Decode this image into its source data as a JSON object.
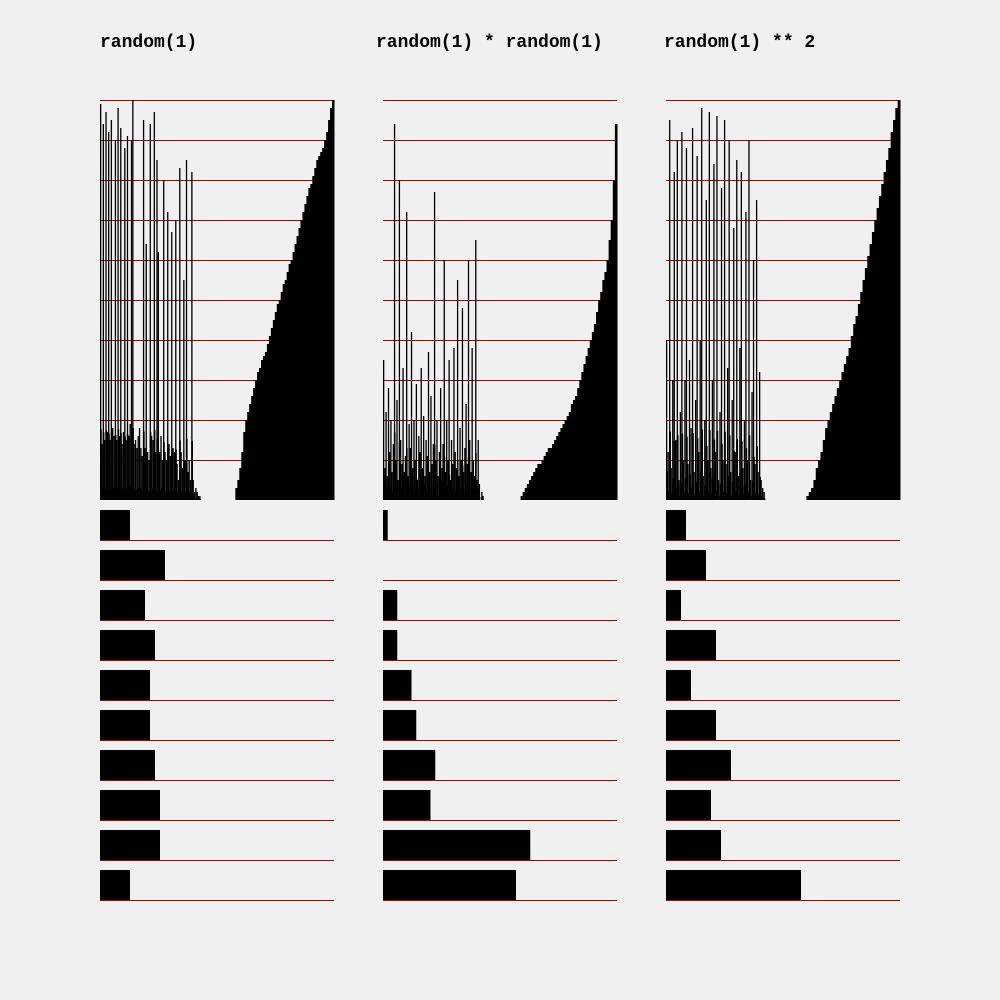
{
  "panels": [
    {
      "title": "random(1)"
    },
    {
      "title": "random(1) * random(1)"
    },
    {
      "title": "random(1) ** 2"
    }
  ],
  "colors": {
    "background": "#f0f0f0",
    "bar": "#000000",
    "gridline": "#b00000"
  },
  "chart_data": [
    {
      "type": "bar",
      "title": "random(1)",
      "description": "Top: samples drawn as vertical bars, sorted samples on right; bottom: histogram of 10 bins over [0,1)",
      "ylim": [
        0,
        1
      ],
      "histogram": {
        "bins": [
          "0.0-0.1",
          "0.1-0.2",
          "0.2-0.3",
          "0.3-0.4",
          "0.4-0.5",
          "0.5-0.6",
          "0.6-0.7",
          "0.7-0.8",
          "0.8-0.9",
          "0.9-1.0"
        ],
        "counts": [
          6,
          13,
          9,
          11,
          10,
          10,
          11,
          12,
          12,
          6
        ]
      },
      "samples": [
        0.99,
        0.14,
        0.94,
        0.15,
        0.97,
        0.17,
        0.92,
        0.15,
        0.95,
        0.18,
        0.16,
        0.9,
        0.15,
        0.98,
        0.16,
        0.93,
        0.14,
        0.17,
        0.88,
        0.15,
        0.91,
        0.16,
        0.19,
        0.9,
        1.0,
        0.14,
        0.15,
        0.13,
        0.16,
        0.18,
        0.13,
        0.11,
        0.95,
        0.13,
        0.64,
        0.12,
        0.1,
        0.94,
        0.16,
        0.15,
        0.97,
        0.12,
        0.85,
        0.62,
        0.12,
        0.16,
        0.1,
        0.8,
        0.12,
        0.1,
        0.72,
        0.14,
        0.11,
        0.67,
        0.13,
        0.12,
        0.7,
        0.09,
        0.05,
        0.83,
        0.12,
        0.08,
        0.55,
        0.1,
        0.85,
        0.07,
        0.1,
        0.05,
        0.82,
        0.05,
        0.02,
        0.03,
        0.02,
        0.01,
        0.01
      ],
      "sorted_samples": [
        0.0,
        0.03,
        0.05,
        0.08,
        0.12,
        0.17,
        0.2,
        0.22,
        0.24,
        0.26,
        0.28,
        0.3,
        0.32,
        0.33,
        0.35,
        0.36,
        0.37,
        0.39,
        0.41,
        0.43,
        0.45,
        0.47,
        0.49,
        0.5,
        0.52,
        0.54,
        0.55,
        0.57,
        0.59,
        0.6,
        0.62,
        0.64,
        0.66,
        0.68,
        0.7,
        0.72,
        0.74,
        0.76,
        0.78,
        0.79,
        0.81,
        0.83,
        0.85,
        0.86,
        0.87,
        0.88,
        0.9,
        0.92,
        0.95,
        0.98,
        1.0
      ]
    },
    {
      "type": "bar",
      "title": "random(1) * random(1)",
      "ylim": [
        0,
        1
      ],
      "histogram": {
        "bins": [
          "0.0-0.1",
          "0.1-0.2",
          "0.2-0.3",
          "0.3-0.4",
          "0.4-0.5",
          "0.5-0.6",
          "0.6-0.7",
          "0.7-0.8",
          "0.8-0.9",
          "0.9-1.0"
        ],
        "counts": [
          1,
          0,
          3,
          3,
          6,
          7,
          11,
          10,
          31,
          28
        ]
      },
      "samples": [
        0.35,
        0.08,
        0.22,
        0.06,
        0.28,
        0.12,
        0.2,
        0.07,
        0.14,
        0.94,
        0.1,
        0.25,
        0.05,
        0.8,
        0.15,
        0.09,
        0.33,
        0.07,
        0.11,
        0.72,
        0.06,
        0.19,
        0.13,
        0.42,
        0.08,
        0.2,
        0.1,
        0.29,
        0.05,
        0.16,
        0.12,
        0.33,
        0.08,
        0.21,
        0.06,
        0.15,
        0.11,
        0.37,
        0.07,
        0.26,
        0.09,
        0.14,
        0.77,
        0.1,
        0.2,
        0.06,
        0.12,
        0.28,
        0.08,
        0.14,
        0.6,
        0.07,
        0.2,
        0.1,
        0.35,
        0.05,
        0.15,
        0.09,
        0.38,
        0.12,
        0.08,
        0.55,
        0.06,
        0.18,
        0.1,
        0.48,
        0.07,
        0.13,
        0.24,
        0.09,
        0.6,
        0.15,
        0.07,
        0.38,
        0.1,
        0.06,
        0.65,
        0.05,
        0.15,
        0.04,
        0.0,
        0.02,
        0.01
      ],
      "sorted_samples": [
        0.0,
        0.0,
        0.01,
        0.02,
        0.03,
        0.04,
        0.05,
        0.06,
        0.07,
        0.08,
        0.09,
        0.09,
        0.1,
        0.11,
        0.12,
        0.13,
        0.13,
        0.14,
        0.15,
        0.16,
        0.17,
        0.18,
        0.19,
        0.2,
        0.21,
        0.22,
        0.24,
        0.25,
        0.26,
        0.28,
        0.3,
        0.32,
        0.34,
        0.36,
        0.38,
        0.4,
        0.42,
        0.44,
        0.47,
        0.5,
        0.52,
        0.55,
        0.57,
        0.6,
        0.65,
        0.7,
        0.8,
        0.94
      ]
    },
    {
      "type": "bar",
      "title": "random(1) ** 2",
      "ylim": [
        0,
        1
      ],
      "histogram": {
        "bins": [
          "0.0-0.1",
          "0.1-0.2",
          "0.2-0.3",
          "0.3-0.4",
          "0.4-0.5",
          "0.5-0.6",
          "0.6-0.7",
          "0.7-0.8",
          "0.8-0.9",
          "0.9-1.0"
        ],
        "counts": [
          4,
          8,
          3,
          10,
          5,
          10,
          13,
          9,
          11,
          27
        ]
      },
      "samples": [
        0.4,
        0.12,
        0.95,
        0.08,
        0.3,
        0.82,
        0.15,
        0.9,
        0.05,
        0.22,
        0.92,
        0.1,
        0.3,
        0.88,
        0.09,
        0.35,
        0.18,
        0.93,
        0.07,
        0.25,
        0.86,
        0.12,
        0.4,
        0.98,
        0.06,
        0.2,
        0.75,
        0.1,
        0.97,
        0.08,
        0.3,
        0.84,
        0.12,
        0.96,
        0.05,
        0.22,
        0.78,
        0.1,
        0.95,
        0.09,
        0.33,
        0.9,
        0.07,
        0.25,
        0.68,
        0.12,
        0.85,
        0.06,
        0.38,
        0.82,
        0.08,
        0.2,
        0.72,
        0.1,
        0.9,
        0.05,
        0.27,
        0.6,
        0.09,
        0.75,
        0.07,
        0.32,
        0.05,
        0.03,
        0.02,
        0.0
      ],
      "sorted_samples": [
        0.0,
        0.0,
        0.0,
        0.01,
        0.02,
        0.03,
        0.05,
        0.08,
        0.1,
        0.12,
        0.15,
        0.18,
        0.2,
        0.22,
        0.24,
        0.26,
        0.28,
        0.3,
        0.32,
        0.34,
        0.36,
        0.38,
        0.41,
        0.44,
        0.46,
        0.49,
        0.52,
        0.55,
        0.58,
        0.61,
        0.64,
        0.67,
        0.7,
        0.73,
        0.76,
        0.79,
        0.82,
        0.85,
        0.88,
        0.92,
        0.95,
        0.98,
        1.0
      ]
    }
  ]
}
